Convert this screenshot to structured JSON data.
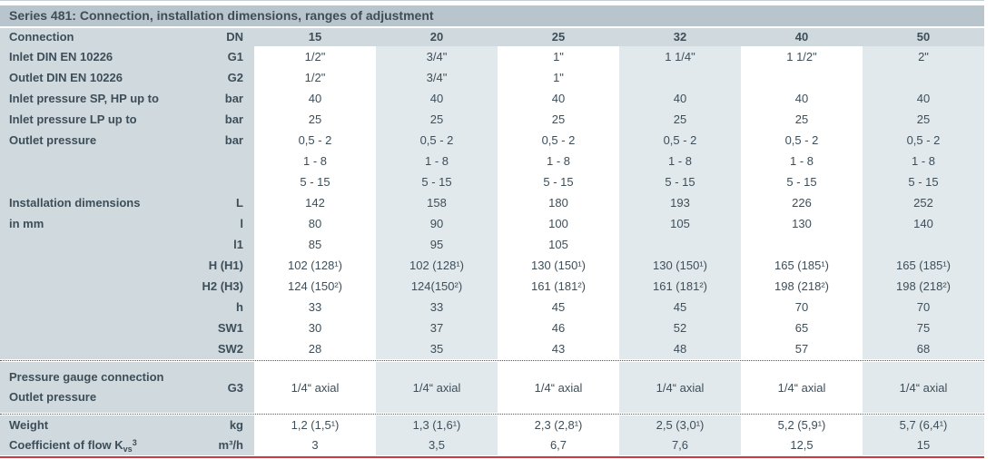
{
  "title": "Series 481: Connection, installation dimensions, ranges of adjustment",
  "colors": {
    "title_bar_bg": "#b9c5cc",
    "header_bg": "#cfd9de",
    "column_tint_bg": "#e2e9ec",
    "column_white_bg": "#ffffff",
    "text": "#3d4e59",
    "divider_dots": "#4a5a64",
    "bottom_rule": "#d03745"
  },
  "header": {
    "label": "Connection",
    "unit": "DN",
    "cols": [
      "15",
      "20",
      "25",
      "32",
      "40",
      "50"
    ]
  },
  "body": {
    "g1": {
      "label": "Inlet DIN EN 10226",
      "unit": "G1",
      "v": [
        "1/2\"",
        "3/4\"",
        "1\"",
        "1 1/4\"",
        "1 1/2\"",
        "2\""
      ]
    },
    "g2": {
      "label": "Outlet DIN EN 10226",
      "unit": "G2",
      "v": [
        "1/2\"",
        "3/4\"",
        "1\"",
        "",
        "",
        ""
      ]
    },
    "sp": {
      "label": "Inlet pressure SP, HP up to",
      "unit": "bar",
      "v": [
        "40",
        "40",
        "40",
        "40",
        "40",
        "40"
      ]
    },
    "lp": {
      "label": "Inlet pressure LP up to",
      "unit": "bar",
      "v": [
        "25",
        "25",
        "25",
        "25",
        "25",
        "25"
      ]
    },
    "outlet": {
      "label": "Outlet pressure",
      "unit": "bar",
      "v": [
        "0,5 - 2\n1 - 8\n5 - 15",
        "0,5 - 2\n1 - 8\n5 - 15",
        "0,5 - 2\n1 - 8\n5 - 15",
        "0,5 - 2\n1 - 8\n5 - 15",
        "0,5 - 2\n1 - 8\n5 - 15",
        "0,5 - 2\n1 - 8\n5 - 15"
      ]
    },
    "dims_label": "Installation dimensions\nin mm",
    "L": {
      "unit": "L",
      "v": [
        "142",
        "158",
        "180",
        "193",
        "226",
        "252"
      ]
    },
    "l": {
      "unit": "l",
      "v": [
        "80",
        "90",
        "100",
        "105",
        "130",
        "140"
      ]
    },
    "l1": {
      "unit": "l1",
      "v": [
        "85",
        "95",
        "105",
        "",
        "",
        ""
      ]
    },
    "H1": {
      "unit": "H (H1)",
      "v": [
        "102 (128¹)",
        "102 (128¹)",
        "130 (150¹)",
        "130 (150¹)",
        "165 (185¹)",
        "165 (185¹)"
      ]
    },
    "H2": {
      "unit": "H2 (H3)",
      "v": [
        "124 (150²)",
        "124(150²)",
        "161 (181²)",
        "161 (181²)",
        "198 (218²)",
        "198 (218²)"
      ]
    },
    "h": {
      "unit": "h",
      "v": [
        "33",
        "33",
        "45",
        "45",
        "70",
        "70"
      ]
    },
    "SW1": {
      "unit": "SW1",
      "v": [
        "30",
        "37",
        "46",
        "52",
        "65",
        "75"
      ]
    },
    "SW2": {
      "unit": "SW2",
      "v": [
        "28",
        "35",
        "43",
        "48",
        "57",
        "68"
      ]
    },
    "g3": {
      "label": "Pressure gauge connection\nOutlet pressure",
      "unit": "G3",
      "v": [
        "1/4“ axial",
        "1/4“ axial",
        "1/4“ axial",
        "1/4“ axial",
        "1/4“ axial",
        "1/4“ axial"
      ]
    },
    "weight": {
      "label": "Weight",
      "unit": "kg",
      "v": [
        "1,2 (1,5¹)",
        "1,3 (1,6¹)",
        "2,3 (2,8¹)",
        "2,5 (3,0¹)",
        "5,2 (5,9¹)",
        "5,7 (6,4¹)"
      ]
    },
    "kvs": {
      "label_pre": "Coefficient of flow K",
      "label_sub": "vs",
      "label_sup": "3",
      "unit": "m³/h",
      "v": [
        "3",
        "3,5",
        "6,7",
        "7,6",
        "12,5",
        "15"
      ]
    }
  }
}
